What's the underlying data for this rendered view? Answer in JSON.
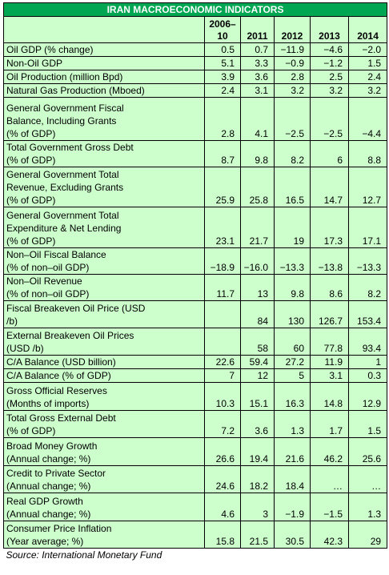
{
  "table": {
    "title": "IRAN MACROECONOMIC  INDICATORS",
    "header": [
      [
        "2006–",
        "10"
      ],
      [
        "2011"
      ],
      [
        "2012"
      ],
      [
        "2013"
      ],
      [
        "2014"
      ]
    ],
    "rows": [
      {
        "label": [
          "Oil GDP (% change)"
        ],
        "values": [
          "0.5",
          "0.7",
          "−11.9",
          "−4.6",
          "−2.0"
        ]
      },
      {
        "label": [
          "Non-Oil GDP"
        ],
        "values": [
          "5.1",
          "3.3",
          "−0.9",
          "−1.2",
          "1.5"
        ]
      },
      {
        "label": [
          "Oil Production (million Bpd)"
        ],
        "values": [
          "3.9",
          "3.6",
          "2.8",
          "2.5",
          "2.4"
        ]
      },
      {
        "label": [
          "Natural Gas Production (Mboed)"
        ],
        "values": [
          "2.4",
          "3.1",
          "3.2",
          "3.2",
          "3.2"
        ]
      },
      {
        "label": [
          "General Government Fiscal",
          "Balance, Including Grants",
          "(% of GDP)"
        ],
        "values": [
          "2.8",
          "4.1",
          "−2.5",
          "−2.5",
          "−4.4"
        ]
      },
      {
        "label": [
          "Total Government Gross Debt",
          "(% of GDP)"
        ],
        "values": [
          "8.7",
          "9.8",
          "8.2",
          "6",
          "8.8"
        ]
      },
      {
        "label": [
          "General Government Total",
          "Revenue, Excluding Grants",
          "(% of GDP)"
        ],
        "values": [
          "25.9",
          "25.8",
          "16.5",
          "14.7",
          "12.7"
        ]
      },
      {
        "label": [
          "General Government Total",
          "Expenditure & Net Lending",
          "(% of GDP)"
        ],
        "values": [
          "23.1",
          "21.7",
          "19",
          "17.3",
          "17.1"
        ]
      },
      {
        "label": [
          "Non–Oil Fiscal Balance",
          "(% of non–oil GDP)"
        ],
        "values": [
          "−18.9",
          "−16.0",
          "−13.3",
          "−13.8",
          "−13.3"
        ]
      },
      {
        "label": [
          "Non–Oil Revenue",
          "(% of non–oil GDP)"
        ],
        "values": [
          "11.7",
          "13",
          "9.8",
          "8.6",
          "8.2"
        ]
      },
      {
        "label": [
          "Fiscal Breakeven Oil Price (USD",
          "/b)"
        ],
        "values": [
          null,
          "84",
          "130",
          "126.7",
          "153.4"
        ]
      },
      {
        "label": [
          "External Breakeven Oil Prices",
          "(USD /b)"
        ],
        "values": [
          null,
          "58",
          "60",
          "77.8",
          "93.4"
        ]
      },
      {
        "label": [
          "C/A Balance (USD billion)"
        ],
        "values": [
          "22.6",
          "59.4",
          "27.2",
          "11.9",
          "1"
        ]
      },
      {
        "label": [
          "C/A Balance (% of GDP)"
        ],
        "values": [
          "7",
          "12",
          "5",
          "3.1",
          "0.3"
        ]
      },
      {
        "label": [
          "Gross Official Reserves",
          "(Months of imports)"
        ],
        "values": [
          "10.3",
          "15.1",
          "16.3",
          "14.8",
          "12.9"
        ]
      },
      {
        "label": [
          "Total Gross External Debt",
          "(% of GDP)"
        ],
        "values": [
          "7.2",
          "3.6",
          "1.3",
          "1.7",
          "1.5"
        ]
      },
      {
        "label": [
          "Broad Money Growth",
          "(Annual change; %)"
        ],
        "values": [
          "26.6",
          "19.4",
          "21.6",
          "46.2",
          "25.6"
        ]
      },
      {
        "label": [
          "Credit to Private Sector",
          "(Annual change; %)"
        ],
        "values": [
          "24.6",
          "18.2",
          "18.4",
          "…",
          "…"
        ]
      },
      {
        "label": [
          "Real GDP Growth",
          "(Annual change; %)"
        ],
        "values": [
          "4.6",
          "3",
          "−1.9",
          "−1.5",
          "1.3"
        ]
      },
      {
        "label": [
          "Consumer Price Inflation",
          "(Year average; %)"
        ],
        "values": [
          "15.8",
          "21.5",
          "30.5",
          "42.3",
          "29"
        ]
      }
    ],
    "source": "Source: International Monetary Fund"
  }
}
